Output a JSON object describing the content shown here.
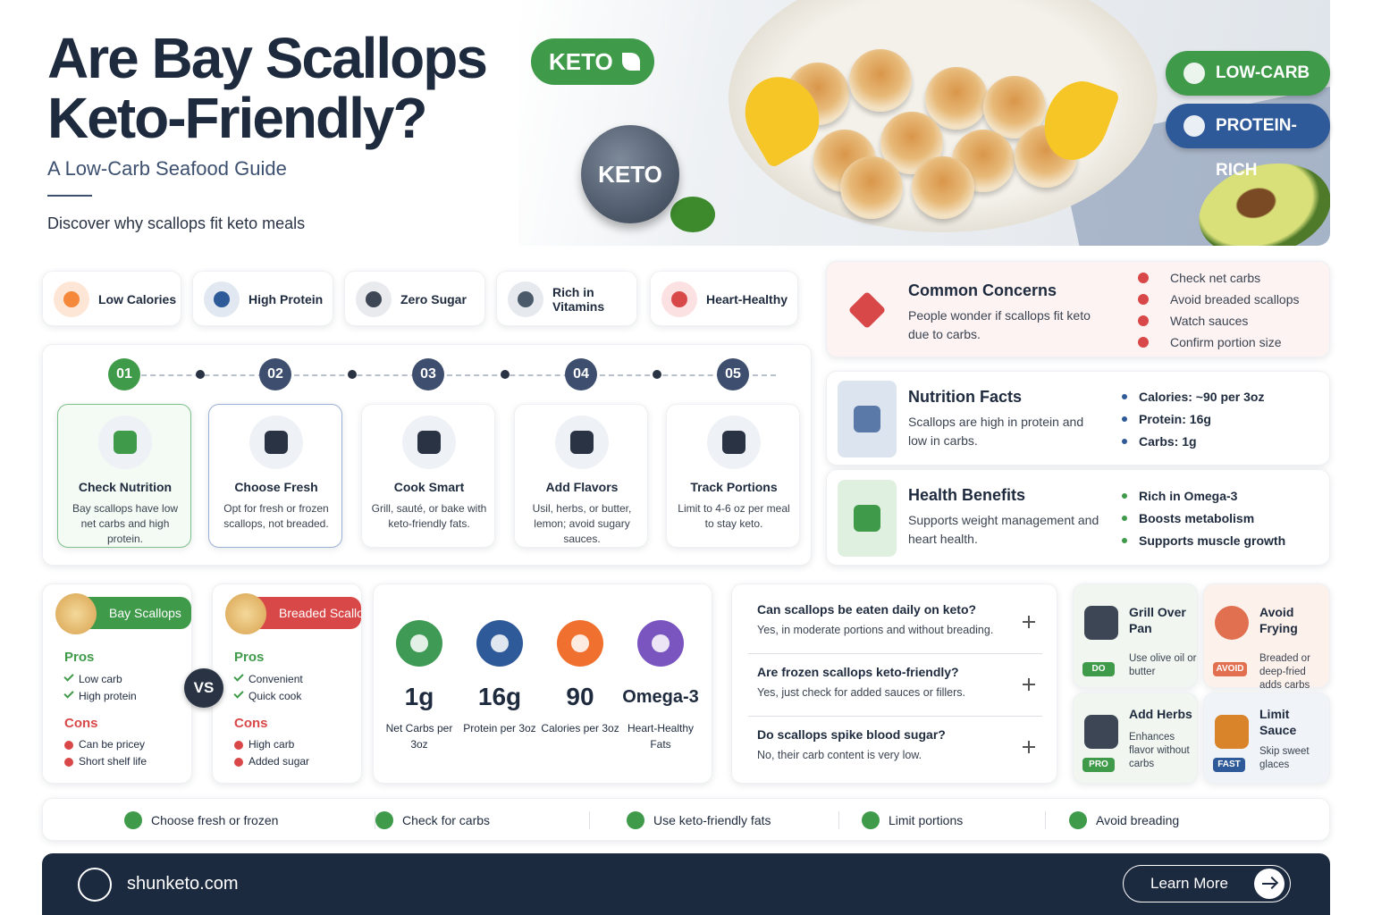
{
  "header": {
    "title_lines": [
      "Are Bay Scallops",
      "Keto-Friendly?"
    ],
    "subtitle": "A Low-Carb Seafood Guide",
    "tagline": "Discover why scallops fit keto meals",
    "keto_badge": "KETO",
    "keto_coin": "KETO",
    "tags": [
      "LOW-CARB",
      "PROTEIN-RICH"
    ]
  },
  "features": [
    "Low Calories",
    "High Protein",
    "Zero Sugar",
    "Rich in Vitamins",
    "Heart-Healthy"
  ],
  "steps": [
    {
      "number": "01",
      "title": "Check Nutrition",
      "text": "Bay scallops have low net carbs and high protein."
    },
    {
      "number": "02",
      "title": "Choose Fresh",
      "text": "Opt for fresh or frozen scallops, not breaded."
    },
    {
      "number": "03",
      "title": "Cook Smart",
      "text": "Grill, sauté, or bake with keto-friendly fats."
    },
    {
      "number": "04",
      "title": "Add Flavors",
      "text": "Usil, herbs, or butter, lemon; avoid sugary sauces."
    },
    {
      "number": "05",
      "title": "Track Portions",
      "text": "Limit to 4-6 oz per meal to stay keto."
    }
  ],
  "concerns": {
    "title": "Common Concerns",
    "text": "People wonder if scallops fit keto due to carbs.",
    "items": [
      "Check net carbs",
      "Avoid breaded scallops",
      "Watch sauces",
      "Confirm portion size"
    ]
  },
  "nutrition": {
    "title": "Nutrition Facts",
    "text": "Scallops are high in protein and low in carbs.",
    "items": [
      "Calories: ~90 per 3oz",
      "Protein: 16g",
      "Carbs: 1g"
    ]
  },
  "benefits": {
    "title": "Health Benefits",
    "text": "Supports weight management and heart health.",
    "items": [
      "Rich in Omega-3",
      "Boosts metabolism",
      "Supports muscle growth"
    ]
  },
  "comparison": {
    "vs": "VS",
    "sides": [
      {
        "name": "Bay Scallops",
        "pros_label": "Pros",
        "pros": [
          "Low carb",
          "High protein"
        ],
        "cons_label": "Cons",
        "cons": [
          "Can be pricey",
          "Short shelf life"
        ]
      },
      {
        "name": "Breaded Scallops",
        "pros_label": "Pros",
        "pros": [
          "Convenient",
          "Quick cook"
        ],
        "cons_label": "Cons",
        "cons": [
          "High carb",
          "Added sugar"
        ]
      }
    ]
  },
  "stats": [
    {
      "value": "1g",
      "label": "Net Carbs per 3oz"
    },
    {
      "value": "16g",
      "label": "Protein per 3oz"
    },
    {
      "value": "90",
      "label": "Calories per 3oz"
    },
    {
      "value": "Omega-3",
      "label": "Heart-Healthy Fats"
    }
  ],
  "faq": [
    {
      "q": "Can scallops be eaten daily on keto?",
      "a": "Yes, in moderate portions and without breading."
    },
    {
      "q": "Are frozen scallops keto-friendly?",
      "a": "Yes, just check for added sauces or fillers."
    },
    {
      "q": "Do scallops spike blood sugar?",
      "a": "No, their carb content is very low."
    }
  ],
  "tips": [
    {
      "title": "Grill Over Pan",
      "text": "Use olive oil or butter",
      "badge": "DO"
    },
    {
      "title": "Avoid Frying",
      "text": "Breaded or deep-fried adds carbs",
      "badge": "AVOID"
    },
    {
      "title": "Add Herbs",
      "text": "Enhances flavor without carbs",
      "badge": "PRO"
    },
    {
      "title": "Limit Sauce",
      "text": "Skip sweet glaces",
      "badge": "FAST"
    }
  ],
  "checklist": [
    "Choose fresh or frozen",
    "Check for carbs",
    "Use keto-friendly fats",
    "Limit portions",
    "Avoid breading"
  ],
  "footer": {
    "site": "shunketo.com",
    "button": "Learn More"
  }
}
